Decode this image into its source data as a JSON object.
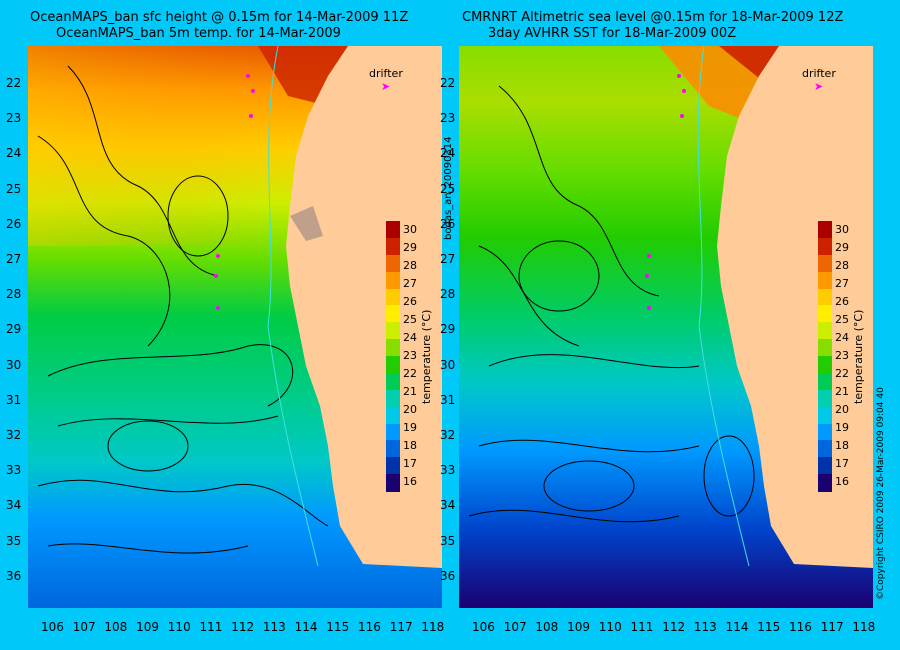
{
  "left_panel": {
    "title_line1": "OceanMAPS_ban sfc height @ 0.15m for 14-Mar-2009 11Z",
    "title_line2": "OceanMAPS_ban 5m temp. for 14-Mar-2009",
    "drifter_label": "drifter",
    "colorbar_label": "temperature (°C)"
  },
  "right_panel": {
    "title_line1": "CMRNRT Altimetric sea level  @0.15m  for 18-Mar-2009 12Z",
    "title_line2": "3day AVHRR SST for 18-Mar-2009 00Z",
    "drifter_label": "drifter",
    "colorbar_label": "temperature (°C)"
  },
  "colorbar_ticks": [
    "30",
    "29",
    "28",
    "27",
    "26",
    "25",
    "24",
    "23",
    "22",
    "21",
    "20",
    "19",
    "18",
    "17",
    "16"
  ],
  "lat_ticks": [
    "22",
    "23",
    "24",
    "25",
    "26",
    "27",
    "28",
    "29",
    "30",
    "31",
    "32",
    "33",
    "34",
    "35",
    "36"
  ],
  "lon_ticks": [
    "106",
    "107",
    "108",
    "109",
    "110",
    "111",
    "112",
    "113",
    "114",
    "115",
    "116",
    "117",
    "118"
  ],
  "middle_label": "bodas_an_20090314",
  "right_edge_label": "©Copyright CSIRO 2009  26-Mar-2009 09:04 40",
  "colors": {
    "background": "#00c8f8",
    "land": "#ffcc99",
    "drifter": "#ff00ff",
    "contour": "#000000",
    "coast_isobath": "#40e0e0"
  },
  "colorbar_colors": [
    "#1a0070",
    "#0033aa",
    "#0066dd",
    "#0099ff",
    "#00c8e8",
    "#00d0b0",
    "#00cc55",
    "#22cc00",
    "#88dd00",
    "#ccee00",
    "#ffee00",
    "#ffcc00",
    "#ff9900",
    "#ee6600",
    "#cc2200",
    "#aa0000"
  ]
}
